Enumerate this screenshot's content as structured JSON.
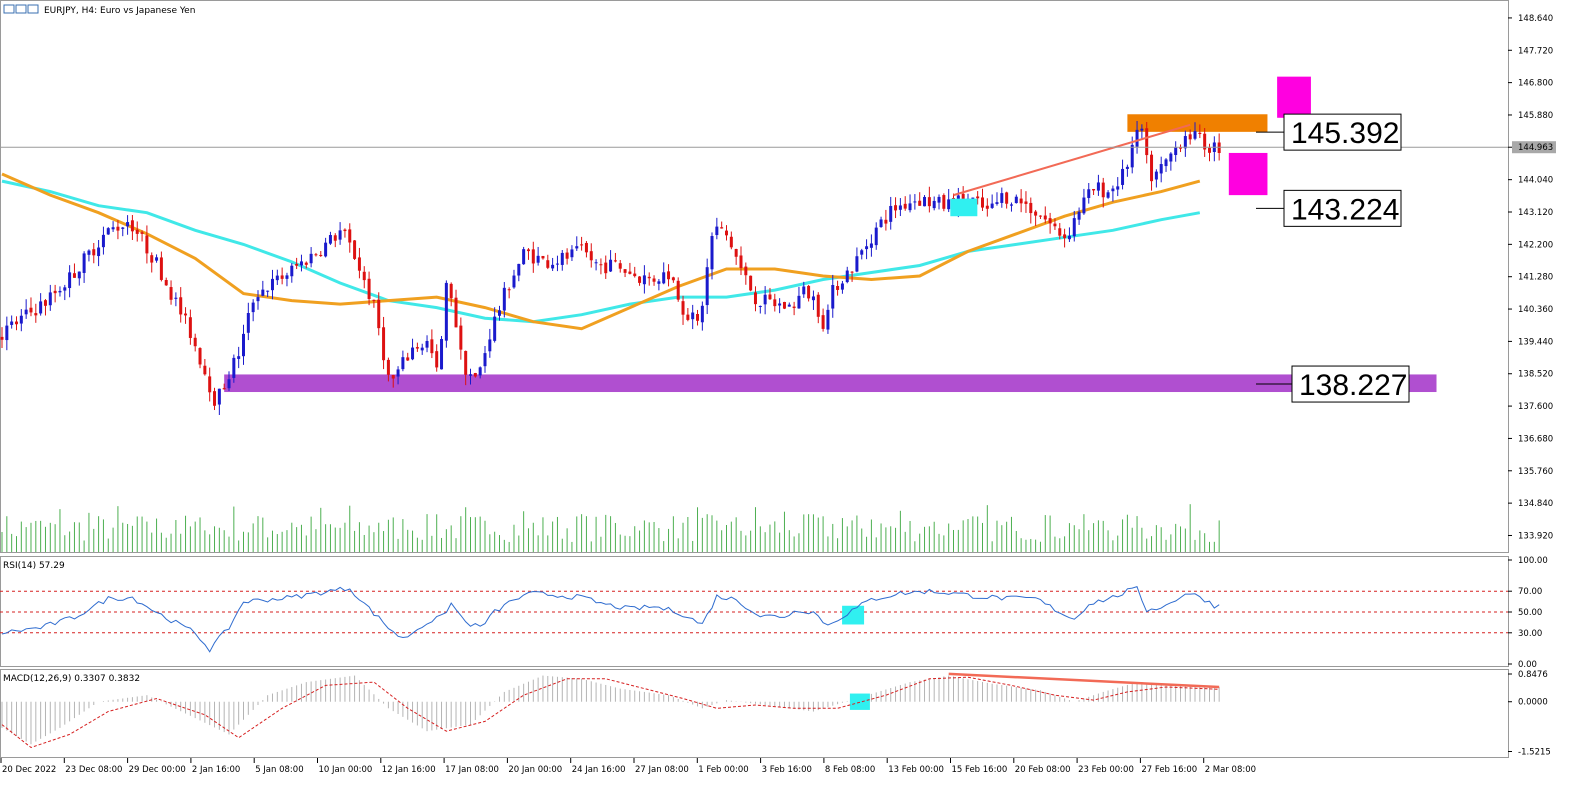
{
  "window": {
    "symbol_title": "EURJPY, H4:  Euro vs Japanese Yen",
    "rsi_title": "RSI(14) 57.29",
    "macd_title": "MACD(12,26,9) 0.3307 0.3832",
    "current_price_label": "144.963"
  },
  "colors": {
    "bull": "#1a1acc",
    "bear": "#dd1111",
    "ma_fast": "#f0a020",
    "ma_slow": "#40e8e8",
    "volume": "#4caf50",
    "rsi_line": "#2f6ccf",
    "signal": "#d62020",
    "macd_hist": "#b4b4b4",
    "support_zone": "#b04fd0",
    "resistance_zone": "#f08000",
    "target_box": "#ff00e0",
    "marker": "#30f0f0",
    "trendline": "#f26a56"
  },
  "chart_data": [
    {
      "type": "candlestick",
      "name": "price",
      "y_ticks": [
        "148.640",
        "147.720",
        "146.800",
        "145.880",
        "144.963",
        "144.040",
        "143.120",
        "142.200",
        "141.280",
        "140.360",
        "139.440",
        "138.520",
        "137.600",
        "136.680",
        "135.760",
        "134.840",
        "133.920"
      ],
      "x_ticks": [
        "20 Dec 2022",
        "23 Dec 08:00",
        "29 Dec 00:00",
        "2 Jan 16:00",
        "5 Jan 08:00",
        "10 Jan 00:00",
        "12 Jan 16:00",
        "17 Jan 08:00",
        "20 Jan 00:00",
        "24 Jan 16:00",
        "27 Jan 08:00",
        "1 Feb 00:00",
        "3 Feb 16:00",
        "8 Feb 08:00",
        "13 Feb 00:00",
        "15 Feb 16:00",
        "20 Feb 08:00",
        "23 Feb 00:00",
        "27 Feb 16:00",
        "2 Mar 08:00"
      ],
      "ylim": [
        133.45,
        149.15
      ],
      "current_price": 144.963,
      "price_path": [
        [
          0,
          139.6
        ],
        [
          10,
          140.6
        ],
        [
          15,
          141.3
        ],
        [
          22,
          142.5
        ],
        [
          27,
          142.9
        ],
        [
          33,
          141.6
        ],
        [
          40,
          139.6
        ],
        [
          45,
          137.7
        ],
        [
          50,
          139.2
        ],
        [
          53,
          140.8
        ],
        [
          57,
          141.1
        ],
        [
          62,
          141.6
        ],
        [
          67,
          142.1
        ],
        [
          71,
          142.6
        ],
        [
          74,
          141.8
        ],
        [
          78,
          140.3
        ],
        [
          81,
          138.2
        ],
        [
          86,
          139.3
        ],
        [
          89,
          139.4
        ],
        [
          91,
          138.4
        ],
        [
          93,
          141.4
        ],
        [
          96,
          138.8
        ],
        [
          99,
          138.3
        ],
        [
          102,
          139.8
        ],
        [
          106,
          141.2
        ],
        [
          109,
          142.0
        ],
        [
          113,
          141.7
        ],
        [
          117,
          141.8
        ],
        [
          121,
          142.0
        ],
        [
          124,
          141.6
        ],
        [
          128,
          141.6
        ],
        [
          132,
          141.3
        ],
        [
          135,
          141.2
        ],
        [
          139,
          141.4
        ],
        [
          142,
          140.3
        ],
        [
          145,
          139.9
        ],
        [
          148,
          142.7
        ],
        [
          151,
          142.4
        ],
        [
          154,
          141.4
        ],
        [
          157,
          140.6
        ],
        [
          161,
          140.5
        ],
        [
          164,
          140.4
        ],
        [
          167,
          140.9
        ],
        [
          169,
          140.6
        ],
        [
          171,
          139.9
        ],
        [
          173,
          141.0
        ],
        [
          177,
          141.6
        ],
        [
          181,
          142.5
        ],
        [
          185,
          143.2
        ],
        [
          190,
          143.5
        ],
        [
          196,
          143.3
        ],
        [
          201,
          143.5
        ],
        [
          205,
          143.1
        ],
        [
          208,
          143.6
        ],
        [
          212,
          143.4
        ],
        [
          216,
          143.0
        ],
        [
          219,
          142.6
        ],
        [
          221,
          142.4
        ],
        [
          224,
          143.3
        ],
        [
          227,
          143.8
        ],
        [
          230,
          143.7
        ],
        [
          233,
          144.2
        ],
        [
          235,
          145.1
        ],
        [
          237,
          145.5
        ],
        [
          238,
          144.1
        ],
        [
          240,
          144.2
        ],
        [
          244,
          145.0
        ],
        [
          246,
          145.4
        ],
        [
          248,
          145.2
        ],
        [
          250,
          145.0
        ],
        [
          252,
          144.96
        ]
      ],
      "ma_fast": [
        [
          0,
          144.2
        ],
        [
          10,
          143.6
        ],
        [
          20,
          143.1
        ],
        [
          30,
          142.5
        ],
        [
          40,
          141.8
        ],
        [
          50,
          140.8
        ],
        [
          60,
          140.6
        ],
        [
          70,
          140.5
        ],
        [
          80,
          140.6
        ],
        [
          90,
          140.7
        ],
        [
          100,
          140.4
        ],
        [
          110,
          140.0
        ],
        [
          120,
          139.8
        ],
        [
          130,
          140.4
        ],
        [
          140,
          141.0
        ],
        [
          150,
          141.5
        ],
        [
          160,
          141.5
        ],
        [
          170,
          141.3
        ],
        [
          180,
          141.2
        ],
        [
          190,
          141.3
        ],
        [
          200,
          142.0
        ],
        [
          210,
          142.5
        ],
        [
          220,
          143.0
        ],
        [
          230,
          143.4
        ],
        [
          240,
          143.7
        ],
        [
          248,
          144.0
        ]
      ],
      "ma_slow": [
        [
          0,
          144.0
        ],
        [
          10,
          143.7
        ],
        [
          20,
          143.3
        ],
        [
          30,
          143.1
        ],
        [
          40,
          142.6
        ],
        [
          50,
          142.2
        ],
        [
          60,
          141.7
        ],
        [
          70,
          141.1
        ],
        [
          80,
          140.6
        ],
        [
          90,
          140.4
        ],
        [
          100,
          140.1
        ],
        [
          110,
          140.0
        ],
        [
          120,
          140.2
        ],
        [
          130,
          140.5
        ],
        [
          140,
          140.7
        ],
        [
          150,
          140.7
        ],
        [
          160,
          140.9
        ],
        [
          170,
          141.2
        ],
        [
          180,
          141.4
        ],
        [
          190,
          141.6
        ],
        [
          200,
          142.0
        ],
        [
          210,
          142.2
        ],
        [
          220,
          142.4
        ],
        [
          230,
          142.6
        ],
        [
          240,
          142.9
        ],
        [
          248,
          143.1
        ]
      ],
      "zones": [
        {
          "name": "support",
          "low": 138.0,
          "high": 138.5,
          "from": 46,
          "to": 297
        },
        {
          "name": "resistance",
          "low": 145.4,
          "high": 145.9,
          "from": 233,
          "to": 262
        }
      ],
      "target_boxes": [
        {
          "name": "upper-target",
          "low": 145.8,
          "high": 146.97,
          "from": 264,
          "to": 271
        },
        {
          "name": "lower-target",
          "low": 143.6,
          "high": 144.8,
          "from": 254,
          "to": 262
        }
      ],
      "trendline": [
        [
          197,
          143.6
        ],
        [
          246,
          145.6
        ]
      ],
      "marker": {
        "x": 198,
        "low": 143.0,
        "high": 143.5
      },
      "price_labels": [
        {
          "text": "145.392",
          "value": 145.392
        },
        {
          "text": "143.224",
          "value": 143.224
        },
        {
          "text": "138.227",
          "value": 138.227
        }
      ]
    },
    {
      "type": "line",
      "name": "rsi",
      "y_ticks": [
        "100.00",
        "70.00",
        "50.00",
        "30.00",
        "0.00"
      ],
      "ylim": [
        0,
        100
      ],
      "levels": [
        70,
        50,
        30
      ],
      "values": [
        [
          0,
          30
        ],
        [
          8,
          35
        ],
        [
          15,
          45
        ],
        [
          22,
          63
        ],
        [
          27,
          64
        ],
        [
          33,
          47
        ],
        [
          40,
          30
        ],
        [
          43,
          14
        ],
        [
          47,
          35
        ],
        [
          50,
          60
        ],
        [
          55,
          62
        ],
        [
          60,
          64
        ],
        [
          65,
          68
        ],
        [
          72,
          73
        ],
        [
          75,
          58
        ],
        [
          80,
          35
        ],
        [
          83,
          24
        ],
        [
          88,
          40
        ],
        [
          91,
          45
        ],
        [
          93,
          58
        ],
        [
          96,
          40
        ],
        [
          99,
          35
        ],
        [
          102,
          50
        ],
        [
          106,
          62
        ],
        [
          110,
          68
        ],
        [
          115,
          66
        ],
        [
          120,
          64
        ],
        [
          125,
          57
        ],
        [
          130,
          53
        ],
        [
          135,
          55
        ],
        [
          140,
          50
        ],
        [
          145,
          38
        ],
        [
          148,
          65
        ],
        [
          152,
          62
        ],
        [
          157,
          46
        ],
        [
          162,
          46
        ],
        [
          165,
          52
        ],
        [
          168,
          50
        ],
        [
          171,
          37
        ],
        [
          174,
          46
        ],
        [
          180,
          62
        ],
        [
          186,
          68
        ],
        [
          192,
          70
        ],
        [
          197,
          68
        ],
        [
          202,
          65
        ],
        [
          208,
          63
        ],
        [
          214,
          63
        ],
        [
          219,
          50
        ],
        [
          222,
          43
        ],
        [
          225,
          58
        ],
        [
          230,
          64
        ],
        [
          233,
          70
        ],
        [
          235,
          72
        ],
        [
          237,
          52
        ],
        [
          241,
          56
        ],
        [
          245,
          68
        ],
        [
          248,
          65
        ],
        [
          251,
          56
        ],
        [
          253,
          57
        ]
      ],
      "marker": {
        "x": 176,
        "low": 38,
        "high": 56
      }
    },
    {
      "type": "bar",
      "name": "macd",
      "y_ticks": [
        "0.8476",
        "0.0000",
        "-1.5215"
      ],
      "ylim": [
        -1.72,
        0.97
      ],
      "histogram": [
        [
          0,
          -0.8
        ],
        [
          6,
          -1.3
        ],
        [
          12,
          -0.8
        ],
        [
          20,
          0.0
        ],
        [
          30,
          0.2
        ],
        [
          40,
          -0.5
        ],
        [
          47,
          -1.0
        ],
        [
          55,
          0.2
        ],
        [
          63,
          0.6
        ],
        [
          73,
          0.8
        ],
        [
          80,
          -0.2
        ],
        [
          88,
          -0.9
        ],
        [
          97,
          -0.7
        ],
        [
          104,
          0.3
        ],
        [
          112,
          0.8
        ],
        [
          120,
          0.7
        ],
        [
          128,
          0.4
        ],
        [
          138,
          0.2
        ],
        [
          145,
          -0.2
        ],
        [
          150,
          0.05
        ],
        [
          158,
          -0.1
        ],
        [
          168,
          -0.3
        ],
        [
          178,
          0.15
        ],
        [
          188,
          0.6
        ],
        [
          196,
          0.8
        ],
        [
          205,
          0.55
        ],
        [
          215,
          0.35
        ],
        [
          222,
          0.0
        ],
        [
          228,
          0.3
        ],
        [
          235,
          0.6
        ],
        [
          242,
          0.55
        ],
        [
          249,
          0.5
        ],
        [
          252,
          0.45
        ]
      ],
      "signal": [
        [
          0,
          -0.7
        ],
        [
          6,
          -1.4
        ],
        [
          14,
          -1.0
        ],
        [
          22,
          -0.3
        ],
        [
          32,
          0.1
        ],
        [
          42,
          -0.4
        ],
        [
          49,
          -1.1
        ],
        [
          58,
          -0.2
        ],
        [
          67,
          0.5
        ],
        [
          77,
          0.6
        ],
        [
          84,
          -0.2
        ],
        [
          92,
          -0.9
        ],
        [
          100,
          -0.6
        ],
        [
          108,
          0.2
        ],
        [
          117,
          0.7
        ],
        [
          125,
          0.7
        ],
        [
          133,
          0.4
        ],
        [
          141,
          0.1
        ],
        [
          148,
          -0.2
        ],
        [
          156,
          -0.1
        ],
        [
          164,
          -0.2
        ],
        [
          173,
          -0.2
        ],
        [
          183,
          0.2
        ],
        [
          192,
          0.7
        ],
        [
          200,
          0.75
        ],
        [
          209,
          0.5
        ],
        [
          218,
          0.2
        ],
        [
          226,
          0.05
        ],
        [
          233,
          0.3
        ],
        [
          241,
          0.45
        ],
        [
          252,
          0.38
        ]
      ],
      "trendline": [
        [
          196,
          0.85
        ],
        [
          252,
          0.45
        ]
      ],
      "marker": {
        "x": 177,
        "low": -0.25,
        "high": 0.25
      }
    }
  ]
}
